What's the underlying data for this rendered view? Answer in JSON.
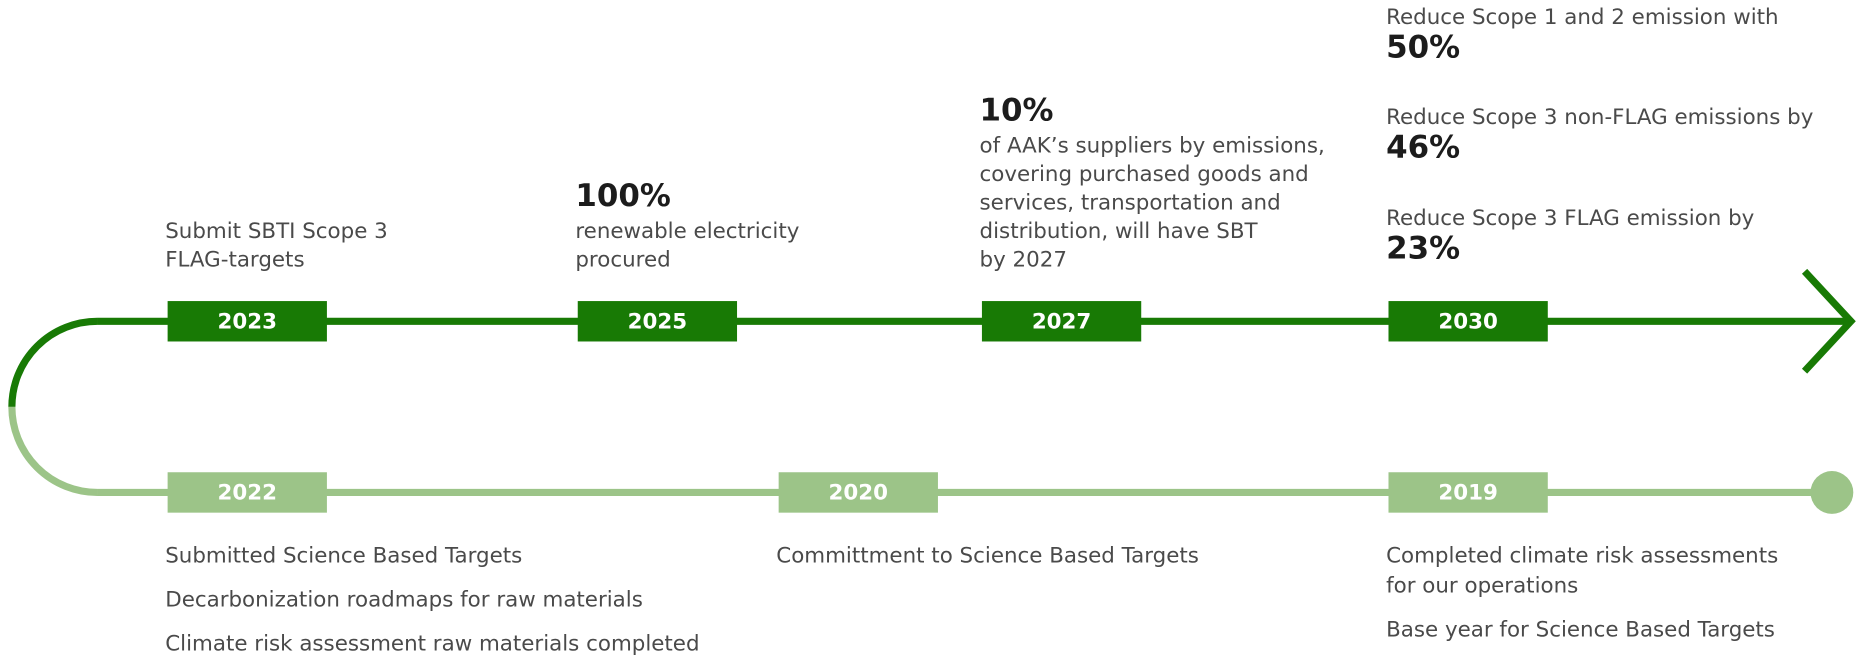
{
  "timeline": {
    "top": [
      {
        "year": "2023",
        "lines": [
          "Submit SBTI Scope 3",
          "FLAG-targets"
        ]
      },
      {
        "year": "2025",
        "headline": "100%",
        "lines": [
          "renewable electricity",
          "procured"
        ]
      },
      {
        "year": "2027",
        "headline": "10%",
        "lines": [
          "of AAK’s suppliers by emissions,",
          "covering purchased goods and",
          "services, transportation and",
          "distribution, will have SBT",
          "by 2027"
        ]
      },
      {
        "year": "2030",
        "targets": [
          {
            "text": "Reduce Scope 1 and 2 emission with",
            "value": "50%"
          },
          {
            "text": "Reduce Scope 3 non-FLAG emissions by",
            "value": "46%"
          },
          {
            "text": "Reduce Scope 3 FLAG emission by",
            "value": "23%"
          }
        ]
      }
    ],
    "bottom": [
      {
        "year": "2022",
        "items": [
          [
            "Submitted Science Based Targets"
          ],
          [
            "Decarbonization roadmaps for raw materials"
          ],
          [
            "Climate risk assessment raw materials completed"
          ]
        ]
      },
      {
        "year": "2020",
        "items": [
          [
            "Committment to Science Based Targets"
          ]
        ]
      },
      {
        "year": "2019",
        "items": [
          [
            "Completed climate risk assessments",
            "for our operations"
          ],
          [
            "Base year for Science Based Targets"
          ]
        ]
      }
    ]
  }
}
